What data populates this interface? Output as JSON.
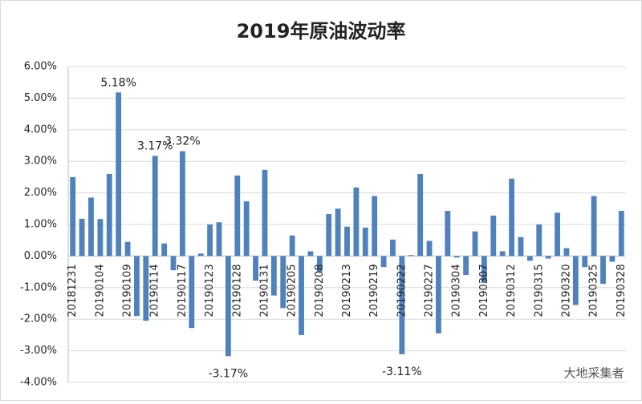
{
  "chart_data": {
    "type": "bar",
    "title": "2019年原油波动率",
    "watermark": "大地采集者",
    "color": "#4f81bd",
    "grid": true,
    "ylim": [
      -4,
      6
    ],
    "yticks": [
      {
        "value": -4,
        "label": "-4.00%"
      },
      {
        "value": -3,
        "label": "-3.00%"
      },
      {
        "value": -2,
        "label": "-2.00%"
      },
      {
        "value": -1,
        "label": "-1.00%"
      },
      {
        "value": 0,
        "label": "0.00%"
      },
      {
        "value": 1,
        "label": "1.00%"
      },
      {
        "value": 2,
        "label": "2.00%"
      },
      {
        "value": 3,
        "label": "3.00%"
      },
      {
        "value": 4,
        "label": "4.00%"
      },
      {
        "value": 5,
        "label": "5.00%"
      },
      {
        "value": 6,
        "label": "6.00%"
      }
    ],
    "categories": [
      "20181231",
      null,
      null,
      "20190104",
      null,
      null,
      "20190109",
      null,
      null,
      "20190114",
      null,
      null,
      "20190117",
      null,
      null,
      "20190123",
      null,
      null,
      "20190128",
      null,
      null,
      "20190131",
      null,
      null,
      "20190205",
      null,
      null,
      "20190208",
      null,
      null,
      "20190213",
      null,
      null,
      "20190219",
      null,
      null,
      "20190222",
      null,
      null,
      "20190227",
      null,
      null,
      "20190304",
      null,
      null,
      "20190307",
      null,
      null,
      "20190312",
      null,
      null,
      "20190315",
      null,
      null,
      "20190320",
      null,
      null,
      "20190325",
      null,
      null,
      "20190328"
    ],
    "values": [
      2.5,
      1.18,
      1.85,
      1.17,
      2.6,
      5.18,
      0.45,
      -1.9,
      -2.05,
      3.17,
      0.4,
      -0.45,
      3.32,
      -2.28,
      0.08,
      1.0,
      1.07,
      -3.17,
      2.55,
      1.73,
      -0.78,
      2.73,
      -1.25,
      -1.65,
      0.65,
      -2.5,
      0.15,
      -0.5,
      1.33,
      1.5,
      0.93,
      2.17,
      0.9,
      1.9,
      -0.35,
      0.52,
      -3.11,
      0.03,
      2.6,
      0.48,
      -2.45,
      1.43,
      -0.05,
      -0.6,
      0.78,
      -0.85,
      1.28,
      0.15,
      2.45,
      0.6,
      -0.15,
      1.0,
      -0.08,
      1.37,
      0.25,
      -1.55,
      -0.35,
      1.9,
      -0.88,
      -0.18,
      1.43
    ],
    "value_labels": [
      null,
      null,
      null,
      null,
      null,
      "5.18%",
      null,
      null,
      null,
      "3.17%",
      null,
      null,
      "3.32%",
      null,
      null,
      null,
      null,
      "-3.17%",
      null,
      null,
      null,
      null,
      null,
      null,
      null,
      null,
      null,
      null,
      null,
      null,
      null,
      null,
      null,
      null,
      null,
      null,
      "-3.11%",
      null,
      null,
      null,
      null,
      null,
      null,
      null,
      null,
      null,
      null,
      null,
      null,
      null,
      null,
      null,
      null,
      null,
      null,
      null,
      null,
      null,
      null,
      null,
      null
    ]
  }
}
